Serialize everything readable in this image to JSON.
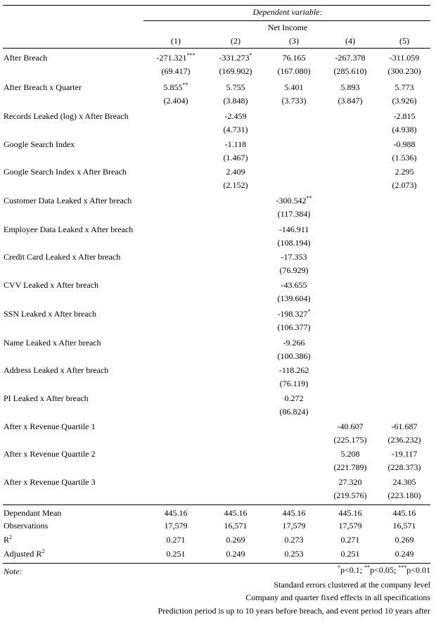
{
  "header": {
    "dep_var_label": "Dependent variable:",
    "dep_var_name": "Net Income",
    "columns": [
      "(1)",
      "(2)",
      "(3)",
      "(4)",
      "(5)"
    ]
  },
  "rows": [
    {
      "label": "After Breach",
      "vals": [
        [
          "-271.321",
          "***"
        ],
        [
          "-331.273",
          "*"
        ],
        [
          "76.165",
          ""
        ],
        [
          "-267.378",
          ""
        ],
        [
          "-311.059",
          ""
        ]
      ],
      "ses": [
        "(69.417)",
        "(169.902)",
        "(167.080)",
        "(285.610)",
        "(300.230)"
      ]
    },
    {
      "label": "After Breach x Quarter",
      "vals": [
        [
          "5.855",
          "**"
        ],
        [
          "5.755",
          ""
        ],
        [
          "5.401",
          ""
        ],
        [
          "5.893",
          ""
        ],
        [
          "5.773",
          ""
        ]
      ],
      "ses": [
        "(2.404)",
        "(3.848)",
        "(3.733)",
        "(3.847)",
        "(3.926)"
      ]
    },
    {
      "label": "Records Leaked (log) x After Breach",
      "vals": [
        [
          "",
          ""
        ],
        [
          "-2.459",
          ""
        ],
        [
          "",
          ""
        ],
        [
          "",
          ""
        ],
        [
          "-2.815",
          ""
        ]
      ],
      "ses": [
        "",
        "(4.731)",
        "",
        "",
        "(4.938)"
      ]
    },
    {
      "label": "Google Search Index",
      "vals": [
        [
          "",
          ""
        ],
        [
          "-1.118",
          ""
        ],
        [
          "",
          ""
        ],
        [
          "",
          ""
        ],
        [
          "-0.988",
          ""
        ]
      ],
      "ses": [
        "",
        "(1.467)",
        "",
        "",
        "(1.536)"
      ]
    },
    {
      "label": "Google Search Index x After Breach",
      "vals": [
        [
          "",
          ""
        ],
        [
          "2.409",
          ""
        ],
        [
          "",
          ""
        ],
        [
          "",
          ""
        ],
        [
          "2.295",
          ""
        ]
      ],
      "ses": [
        "",
        "(2.152)",
        "",
        "",
        "(2.073)"
      ]
    },
    {
      "label": "Customer Data Leaked x After breach",
      "vals": [
        [
          "",
          ""
        ],
        [
          "",
          ""
        ],
        [
          "-300.542",
          "**"
        ],
        [
          "",
          ""
        ],
        [
          "",
          ""
        ]
      ],
      "ses": [
        "",
        "",
        "(117.384)",
        "",
        ""
      ]
    },
    {
      "label": "Employee Data Leaked x After breach",
      "vals": [
        [
          "",
          ""
        ],
        [
          "",
          ""
        ],
        [
          "-146.911",
          ""
        ],
        [
          "",
          ""
        ],
        [
          "",
          ""
        ]
      ],
      "ses": [
        "",
        "",
        "(108.194)",
        "",
        ""
      ]
    },
    {
      "label": "Credit Card Leaked x After breach",
      "vals": [
        [
          "",
          ""
        ],
        [
          "",
          ""
        ],
        [
          "-17.353",
          ""
        ],
        [
          "",
          ""
        ],
        [
          "",
          ""
        ]
      ],
      "ses": [
        "",
        "",
        "(76.929)",
        "",
        ""
      ]
    },
    {
      "label": "CVV Leaked x After breach",
      "vals": [
        [
          "",
          ""
        ],
        [
          "",
          ""
        ],
        [
          "-43.655",
          ""
        ],
        [
          "",
          ""
        ],
        [
          "",
          ""
        ]
      ],
      "ses": [
        "",
        "",
        "(139.604)",
        "",
        ""
      ]
    },
    {
      "label": "SSN Leaked x After breach",
      "vals": [
        [
          "",
          ""
        ],
        [
          "",
          ""
        ],
        [
          "-198.327",
          "*"
        ],
        [
          "",
          ""
        ],
        [
          "",
          ""
        ]
      ],
      "ses": [
        "",
        "",
        "(106.377)",
        "",
        ""
      ]
    },
    {
      "label": "Name Leaked x After breach",
      "vals": [
        [
          "",
          ""
        ],
        [
          "",
          ""
        ],
        [
          "-9.266",
          ""
        ],
        [
          "",
          ""
        ],
        [
          "",
          ""
        ]
      ],
      "ses": [
        "",
        "",
        "(100.386)",
        "",
        ""
      ]
    },
    {
      "label": "Address Leaked x After breach",
      "vals": [
        [
          "",
          ""
        ],
        [
          "",
          ""
        ],
        [
          "-118.262",
          ""
        ],
        [
          "",
          ""
        ],
        [
          "",
          ""
        ]
      ],
      "ses": [
        "",
        "",
        "(76.119)",
        "",
        ""
      ]
    },
    {
      "label": "PI Leaked x After breach",
      "vals": [
        [
          "",
          ""
        ],
        [
          "",
          ""
        ],
        [
          "0.272",
          ""
        ],
        [
          "",
          ""
        ],
        [
          "",
          ""
        ]
      ],
      "ses": [
        "",
        "",
        "(86.824)",
        "",
        ""
      ]
    },
    {
      "label": "After x Revenue Quartile 1",
      "vals": [
        [
          "",
          ""
        ],
        [
          "",
          ""
        ],
        [
          "",
          ""
        ],
        [
          "-40.607",
          ""
        ],
        [
          "-61.687",
          ""
        ]
      ],
      "ses": [
        "",
        "",
        "",
        "(225.175)",
        "(236.232)"
      ]
    },
    {
      "label": "After x Revenue Quartile 2",
      "vals": [
        [
          "",
          ""
        ],
        [
          "",
          ""
        ],
        [
          "",
          ""
        ],
        [
          "5.208",
          ""
        ],
        [
          "-19.117",
          ""
        ]
      ],
      "ses": [
        "",
        "",
        "",
        "(221.789)",
        "(228.373)"
      ]
    },
    {
      "label": "After x Revenue Quartile 3",
      "vals": [
        [
          "",
          ""
        ],
        [
          "",
          ""
        ],
        [
          "",
          ""
        ],
        [
          "27.320",
          ""
        ],
        [
          "24.305",
          ""
        ]
      ],
      "ses": [
        "",
        "",
        "",
        "(219.576)",
        "(223.180)"
      ]
    }
  ],
  "stats": [
    {
      "label": "Dependant Mean",
      "sup": "",
      "vals": [
        "445.16",
        "445.16",
        "445.16",
        "445.16",
        "445.16"
      ]
    },
    {
      "label": "Observations",
      "sup": "",
      "vals": [
        "17,579",
        "16,571",
        "17,579",
        "17,579",
        "16,571"
      ]
    },
    {
      "label": "R",
      "sup": "2",
      "vals": [
        "0.271",
        "0.269",
        "0.273",
        "0.271",
        "0.269"
      ]
    },
    {
      "label": "Adjusted R",
      "sup": "2",
      "vals": [
        "0.251",
        "0.249",
        "0.253",
        "0.251",
        "0.249"
      ]
    }
  ],
  "notes": {
    "label": "Note:",
    "significance": [
      {
        "sup": "*",
        "text": "p<0.1; "
      },
      {
        "sup": "**",
        "text": "p<0.05; "
      },
      {
        "sup": "***",
        "text": "p<0.01"
      }
    ],
    "lines": [
      "Standard errors clustered at the company level",
      "Company and quarter fixed effects in all specifications",
      "Prediction period is up to 10 years before breach, and event period 10 years after"
    ]
  }
}
